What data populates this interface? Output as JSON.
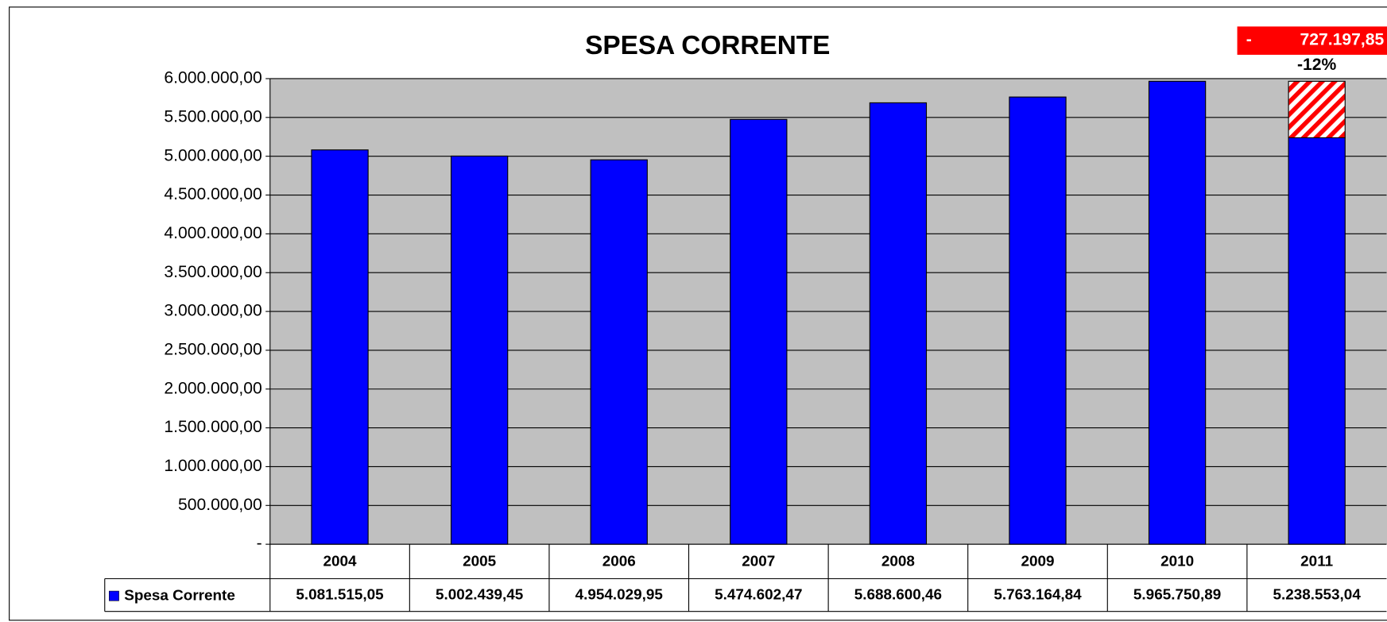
{
  "chart_data": {
    "type": "bar",
    "title": "SPESA CORRENTE",
    "categories": [
      "2004",
      "2005",
      "2006",
      "2007",
      "2008",
      "2009",
      "2010",
      "2011"
    ],
    "series": [
      {
        "name": "Spesa Corrente",
        "color": "#0000ff",
        "values": [
          5081515.05,
          5002439.45,
          4954029.95,
          5474602.47,
          5688600.46,
          5763164.84,
          5965750.89,
          5238553.04
        ],
        "value_labels": [
          "5.081.515,05",
          "5.002.439,45",
          "4.954.029,95",
          "5.474.602,47",
          "5.688.600,46",
          "5.763.164,84",
          "5.965.750,89",
          "5.238.553,04"
        ]
      }
    ],
    "reduction": {
      "category": "2011",
      "value": 727197.85,
      "sign": "-",
      "value_label": "727.197,85",
      "percent_label": "-12%",
      "color": "#ff0000"
    },
    "ylim": [
      0,
      6000000
    ],
    "yticks": [
      {
        "value": 0,
        "label": "-"
      },
      {
        "value": 500000,
        "label": "500.000,00"
      },
      {
        "value": 1000000,
        "label": "1.000.000,00"
      },
      {
        "value": 1500000,
        "label": "1.500.000,00"
      },
      {
        "value": 2000000,
        "label": "2.000.000,00"
      },
      {
        "value": 2500000,
        "label": "2.500.000,00"
      },
      {
        "value": 3000000,
        "label": "3.000.000,00"
      },
      {
        "value": 3500000,
        "label": "3.500.000,00"
      },
      {
        "value": 4000000,
        "label": "4.000.000,00"
      },
      {
        "value": 4500000,
        "label": "4.500.000,00"
      },
      {
        "value": 5000000,
        "label": "5.000.000,00"
      },
      {
        "value": 5500000,
        "label": "5.500.000,00"
      },
      {
        "value": 6000000,
        "label": "6.000.000,00"
      }
    ],
    "grid": true,
    "plot_background": "#c0c0c0"
  }
}
